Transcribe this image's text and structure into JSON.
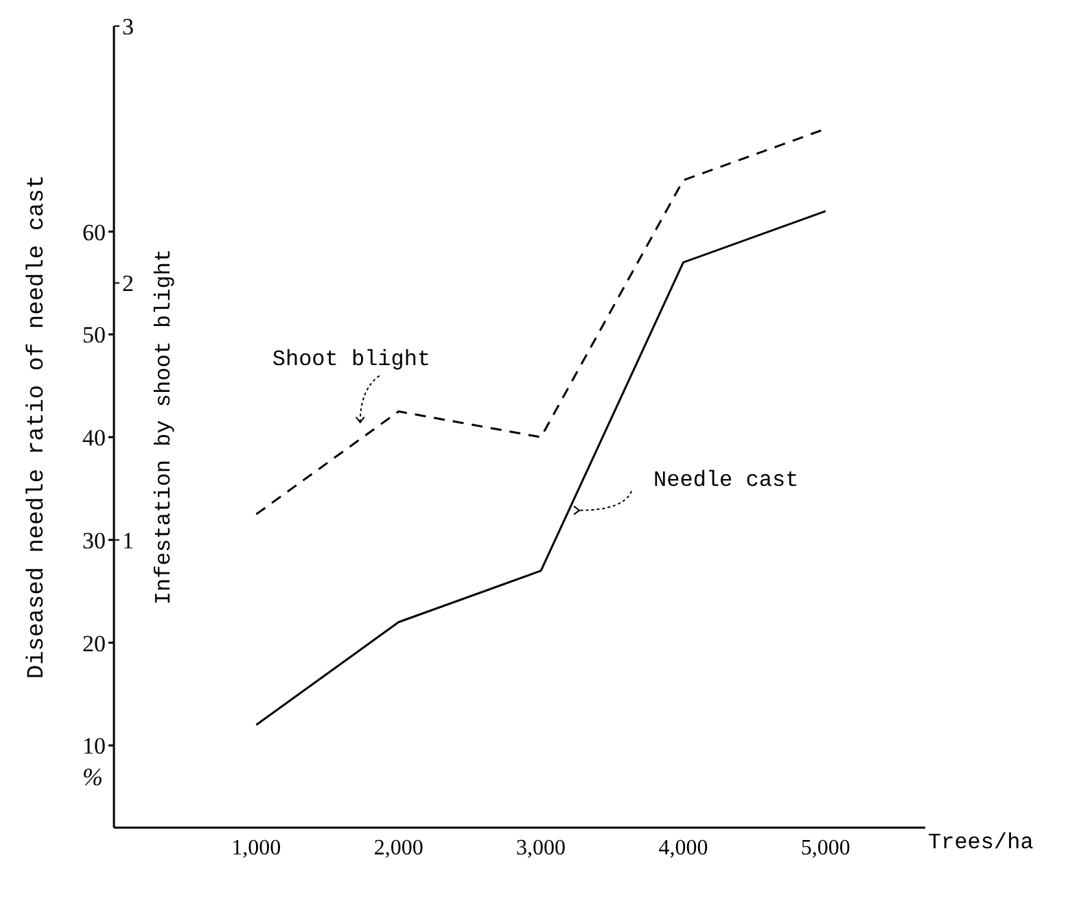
{
  "chart_data": {
    "type": "line",
    "xlabel": "Trees/ha",
    "ylabel": "Diseased needle ratio of needle cast",
    "y2label": "Infestation by shoot blight",
    "x": [
      1000,
      2000,
      3000,
      4000,
      5000
    ],
    "series": [
      {
        "name": "Needle cast",
        "color": "#000000",
        "line_style": "solid",
        "values": [
          12,
          22,
          27,
          57,
          62
        ]
      },
      {
        "name": "Shoot blight",
        "color": "#000000",
        "line_style": "dashed",
        "axis": "y2",
        "values": [
          1.1,
          1.5,
          1.4,
          2.4,
          2.6
        ]
      }
    ],
    "xlim": [
      0,
      5700
    ],
    "xticks": [
      {
        "value": 1000,
        "label": "1,000"
      },
      {
        "value": 2000,
        "label": "2,000"
      },
      {
        "value": 3000,
        "label": "3,000"
      },
      {
        "value": 4000,
        "label": "4,000"
      },
      {
        "value": 5000,
        "label": "5,000"
      }
    ],
    "ylim": [
      2,
      80
    ],
    "yticks": [
      10,
      20,
      30,
      40,
      50,
      60
    ],
    "y2lim": [
      -0.12,
      3
    ],
    "y2ticks": [
      1,
      2,
      3
    ],
    "annotations": [
      "%"
    ],
    "grid": false,
    "legend": false,
    "marker": "none"
  }
}
